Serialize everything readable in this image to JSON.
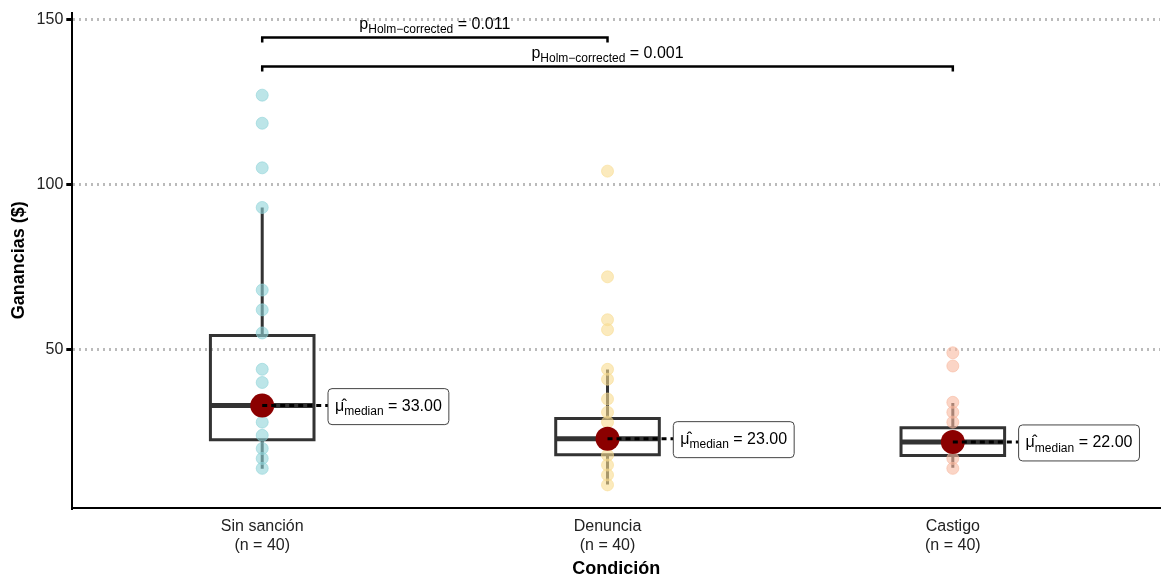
{
  "chart_data": {
    "type": "box",
    "xlabel": "Condición",
    "ylabel": "Ganancias ($)",
    "categories": [
      "Sin sanción\n(n = 40)",
      "Denuncia\n(n = 40)",
      "Castigo\n(n = 40)"
    ],
    "boxes": [
      {
        "low": 13.9,
        "q1": 22.7,
        "median": 33,
        "q3": 54.2,
        "high": 93
      },
      {
        "low": 9.1,
        "q1": 18.1,
        "median": 23,
        "q3": 29.1,
        "high": 43.9
      },
      {
        "low": 14.2,
        "q1": 17.9,
        "median": 22,
        "q3": 26.3,
        "high": 33.8
      }
    ],
    "series": [
      {
        "type": "scatter",
        "color": "#8fd3d8",
        "x": [
          "Sin sanción\n(n = 40)",
          "Sin sanción\n(n = 40)",
          "Sin sanción\n(n = 40)",
          "Sin sanción\n(n = 40)",
          "Sin sanción\n(n = 40)",
          "Sin sanción\n(n = 40)",
          "Sin sanción\n(n = 40)",
          "Sin sanción\n(n = 40)",
          "Sin sanción\n(n = 40)",
          "Sin sanción\n(n = 40)",
          "Sin sanción\n(n = 40)",
          "Sin sanción\n(n = 40)",
          "Sin sanción\n(n = 40)",
          "Sin sanción\n(n = 40)"
        ],
        "values": [
          127,
          118.5,
          105,
          93,
          68,
          62,
          55,
          44,
          40,
          28,
          24,
          20,
          17,
          14
        ]
      },
      {
        "type": "scatter",
        "color": "#f9dc91",
        "x": [
          "Denuncia\n(n = 40)",
          "Denuncia\n(n = 40)",
          "Denuncia\n(n = 40)",
          "Denuncia\n(n = 40)",
          "Denuncia\n(n = 40)",
          "Denuncia\n(n = 40)",
          "Denuncia\n(n = 40)",
          "Denuncia\n(n = 40)",
          "Denuncia\n(n = 40)",
          "Denuncia\n(n = 40)",
          "Denuncia\n(n = 40)",
          "Denuncia\n(n = 40)",
          "Denuncia\n(n = 40)"
        ],
        "values": [
          104,
          72,
          59,
          56,
          44,
          41,
          35,
          31,
          28,
          18,
          15,
          12,
          9
        ]
      },
      {
        "type": "scatter",
        "color": "#f9b9a0",
        "x": [
          "Castigo\n(n = 40)",
          "Castigo\n(n = 40)",
          "Castigo\n(n = 40)",
          "Castigo\n(n = 40)",
          "Castigo\n(n = 40)",
          "Castigo\n(n = 40)",
          "Castigo\n(n = 40)"
        ],
        "values": [
          49,
          45,
          34,
          31,
          28,
          17,
          14
        ]
      }
    ],
    "ylim": [
      2,
      152
    ],
    "yticks": [
      50,
      100,
      150
    ],
    "grid": "y",
    "line_style": "dotted",
    "marker": "circle",
    "annotations": [
      "p$_{Holm−corrected}$ = 0.011",
      "p$_{Holm−corrected}$ = 0.001",
      {
        "text": "μ̂$_{median}$ = 33.00",
        "x": "Sin sanción\n(n = 40)",
        "y": 33
      },
      {
        "text": "μ̂$_{median}$ = 23.00",
        "x": "Denuncia\n(n = 40)",
        "y": 23
      },
      {
        "text": "μ̂$_{median}$ = 22.00",
        "x": "Castigo\n(n = 40)",
        "y": 22
      }
    ]
  }
}
